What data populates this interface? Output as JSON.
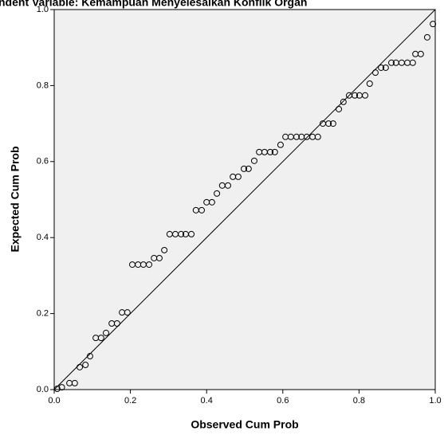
{
  "chart_data": {
    "type": "scatter",
    "title": "ndent Variable: Kemampuan Menyelesaikan Konflik Organ",
    "x_label": "Observed Cum Prob",
    "y_label": "Expected Cum Prob",
    "xlim": [
      0,
      1
    ],
    "ylim": [
      0,
      1
    ],
    "xticks": [
      {
        "value": 0,
        "label": "0.0"
      },
      0.2,
      0.4,
      0.6,
      0.8,
      {
        "value": 1,
        "label": "1.0"
      }
    ],
    "yticks": [
      {
        "value": 0,
        "label": "0.0"
      },
      0.2,
      0.4,
      0.6,
      0.8,
      {
        "value": 1,
        "label": "1.0"
      }
    ],
    "reference_line": true,
    "series": [
      {
        "color": "#000000",
        "x": [
          0.008,
          0.02,
          0.04,
          0.054,
          0.067,
          0.082,
          0.094,
          0.109,
          0.123,
          0.136,
          0.151,
          0.165,
          0.178,
          0.192,
          0.205,
          0.22,
          0.234,
          0.249,
          0.262,
          0.276,
          0.289,
          0.303,
          0.318,
          0.333,
          0.345,
          0.36,
          0.372,
          0.387,
          0.4,
          0.414,
          0.427,
          0.441,
          0.456,
          0.469,
          0.483,
          0.498,
          0.51,
          0.525,
          0.538,
          0.552,
          0.567,
          0.579,
          0.594,
          0.607,
          0.621,
          0.636,
          0.649,
          0.663,
          0.678,
          0.692,
          0.705,
          0.72,
          0.732,
          0.747,
          0.759,
          0.774,
          0.789,
          0.801,
          0.816,
          0.828,
          0.843,
          0.858,
          0.87,
          0.885,
          0.897,
          0.912,
          0.927,
          0.941,
          0.948,
          0.962,
          0.979,
          0.994
        ],
        "values": [
          0.002,
          0.006,
          0.017,
          0.017,
          0.059,
          0.065,
          0.088,
          0.136,
          0.136,
          0.149,
          0.174,
          0.174,
          0.203,
          0.203,
          0.329,
          0.329,
          0.329,
          0.329,
          0.346,
          0.346,
          0.367,
          0.409,
          0.409,
          0.409,
          0.409,
          0.409,
          0.472,
          0.472,
          0.493,
          0.493,
          0.516,
          0.537,
          0.537,
          0.56,
          0.56,
          0.581,
          0.581,
          0.602,
          0.625,
          0.625,
          0.625,
          0.625,
          0.644,
          0.665,
          0.665,
          0.665,
          0.665,
          0.665,
          0.665,
          0.665,
          0.7,
          0.7,
          0.7,
          0.738,
          0.757,
          0.774,
          0.774,
          0.774,
          0.774,
          0.805,
          0.834,
          0.847,
          0.847,
          0.86,
          0.86,
          0.86,
          0.86,
          0.86,
          0.883,
          0.883,
          0.927,
          0.962
        ]
      }
    ]
  }
}
